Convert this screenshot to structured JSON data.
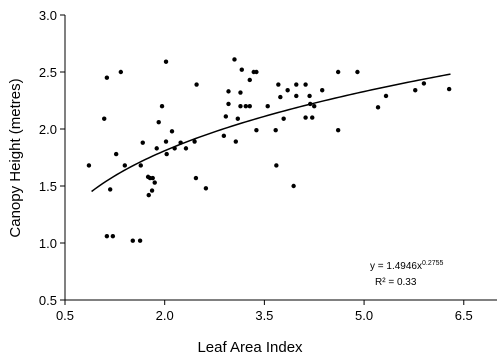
{
  "chart_data": {
    "type": "scatter",
    "x_label": "Leaf Area Index",
    "y_label": "Canopy Height (metres)",
    "color": "#000000",
    "x": [
      0.86,
      1.09,
      1.13,
      1.34,
      1.13,
      1.22,
      1.18,
      1.27,
      1.4,
      1.52,
      1.63,
      1.64,
      1.67,
      1.75,
      1.78,
      1.82,
      1.76,
      1.81,
      1.85,
      1.88,
      1.91,
      1.96,
      2.02,
      2.02,
      2.03,
      2.11,
      2.15,
      2.24,
      2.32,
      2.45,
      2.47,
      2.48,
      2.62,
      2.89,
      2.92,
      2.96,
      2.96,
      3.05,
      3.07,
      3.1,
      3.14,
      3.14,
      3.16,
      3.22,
      3.28,
      3.28,
      3.34,
      3.38,
      3.38,
      3.55,
      3.67,
      3.68,
      3.71,
      3.74,
      3.79,
      3.85,
      3.94,
      3.98,
      3.98,
      4.12,
      4.12,
      4.18,
      4.19,
      4.22,
      4.25,
      4.37,
      4.61,
      4.61,
      4.9,
      5.21,
      5.33,
      5.77,
      5.9,
      6.28
    ],
    "values": [
      1.68,
      2.09,
      2.45,
      2.5,
      1.06,
      1.06,
      1.47,
      1.78,
      1.68,
      1.02,
      1.02,
      1.68,
      1.88,
      1.58,
      1.57,
      1.57,
      1.42,
      1.46,
      1.53,
      1.83,
      2.06,
      2.2,
      2.59,
      1.89,
      1.78,
      1.98,
      1.83,
      1.88,
      1.83,
      1.89,
      1.57,
      2.39,
      1.48,
      1.94,
      2.11,
      2.22,
      2.33,
      2.61,
      1.89,
      2.09,
      2.32,
      2.2,
      2.52,
      2.2,
      2.2,
      2.43,
      2.5,
      2.5,
      1.99,
      2.2,
      1.99,
      1.68,
      2.39,
      2.28,
      2.09,
      2.34,
      1.5,
      2.39,
      2.29,
      2.39,
      2.1,
      2.29,
      2.22,
      2.1,
      2.2,
      2.34,
      2.5,
      1.99,
      2.5,
      2.19,
      2.29,
      2.34,
      2.4,
      2.35
    ],
    "xlim": [
      0.5,
      7.0
    ],
    "ylim": [
      0.5,
      3.0
    ],
    "xticks": [
      0.5,
      {
        "value": 2,
        "label": "2.0"
      },
      3.5,
      {
        "value": 5,
        "label": "5.0"
      },
      6.5
    ],
    "yticks": [
      0.5,
      {
        "value": 1,
        "label": "1.0"
      },
      1.5,
      {
        "value": 2,
        "label": "2.0"
      },
      2.5,
      {
        "value": 3,
        "label": "3.0"
      }
    ],
    "trendline": {
      "coefficient": 1.4946,
      "exponent": 0.2755,
      "x_range": [
        0.9,
        6.3
      ],
      "color": "#000000"
    },
    "annotations": {
      "equation": "y = 1.4946x",
      "equation_exponent": "0.2755",
      "r_squared": "R² = 0.33"
    }
  }
}
